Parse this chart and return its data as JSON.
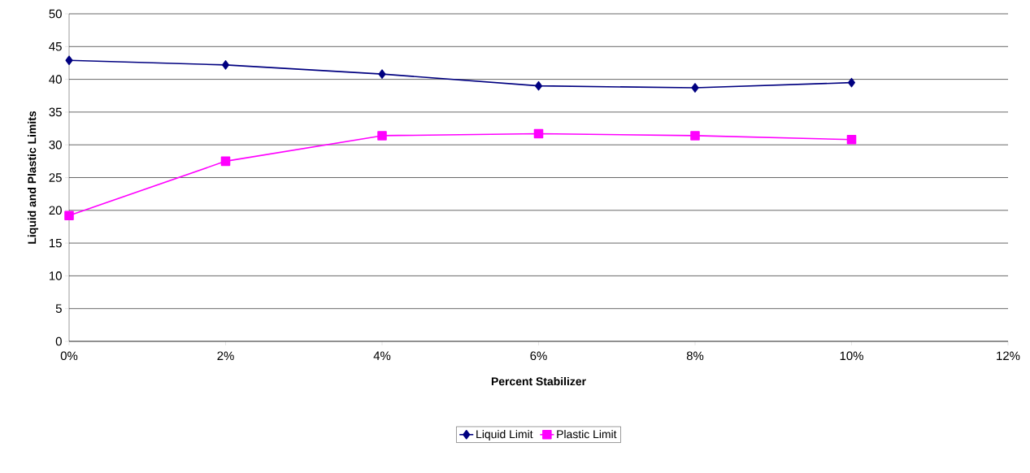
{
  "chart_data": {
    "type": "line",
    "xlabel": "Percent Stabilizer",
    "ylabel": "Liquid and Plastic Limits",
    "x": [
      0,
      2,
      4,
      6,
      8,
      10
    ],
    "series": [
      {
        "name": "Liquid Limit",
        "color": "#000080",
        "marker": "diamond",
        "values": [
          42.9,
          42.2,
          40.8,
          39.0,
          38.7,
          39.5
        ]
      },
      {
        "name": "Plastic Limit",
        "color": "#ff00ff",
        "marker": "square",
        "values": [
          19.2,
          27.5,
          31.4,
          31.7,
          31.4,
          30.8
        ]
      }
    ],
    "xlim": [
      0,
      12
    ],
    "xticks": [
      {
        "value": 0,
        "label": "0%"
      },
      {
        "value": 2,
        "label": "2%"
      },
      {
        "value": 4,
        "label": "4%"
      },
      {
        "value": 6,
        "label": "6%"
      },
      {
        "value": 8,
        "label": "8%"
      },
      {
        "value": 10,
        "label": "10%"
      },
      {
        "value": 12,
        "label": "12%"
      }
    ],
    "ylim": [
      0,
      50
    ],
    "yticks": [
      0,
      5,
      10,
      15,
      20,
      25,
      30,
      35,
      40,
      45,
      50
    ],
    "grid": "y",
    "legend": "bottom",
    "line_style": "solid"
  }
}
